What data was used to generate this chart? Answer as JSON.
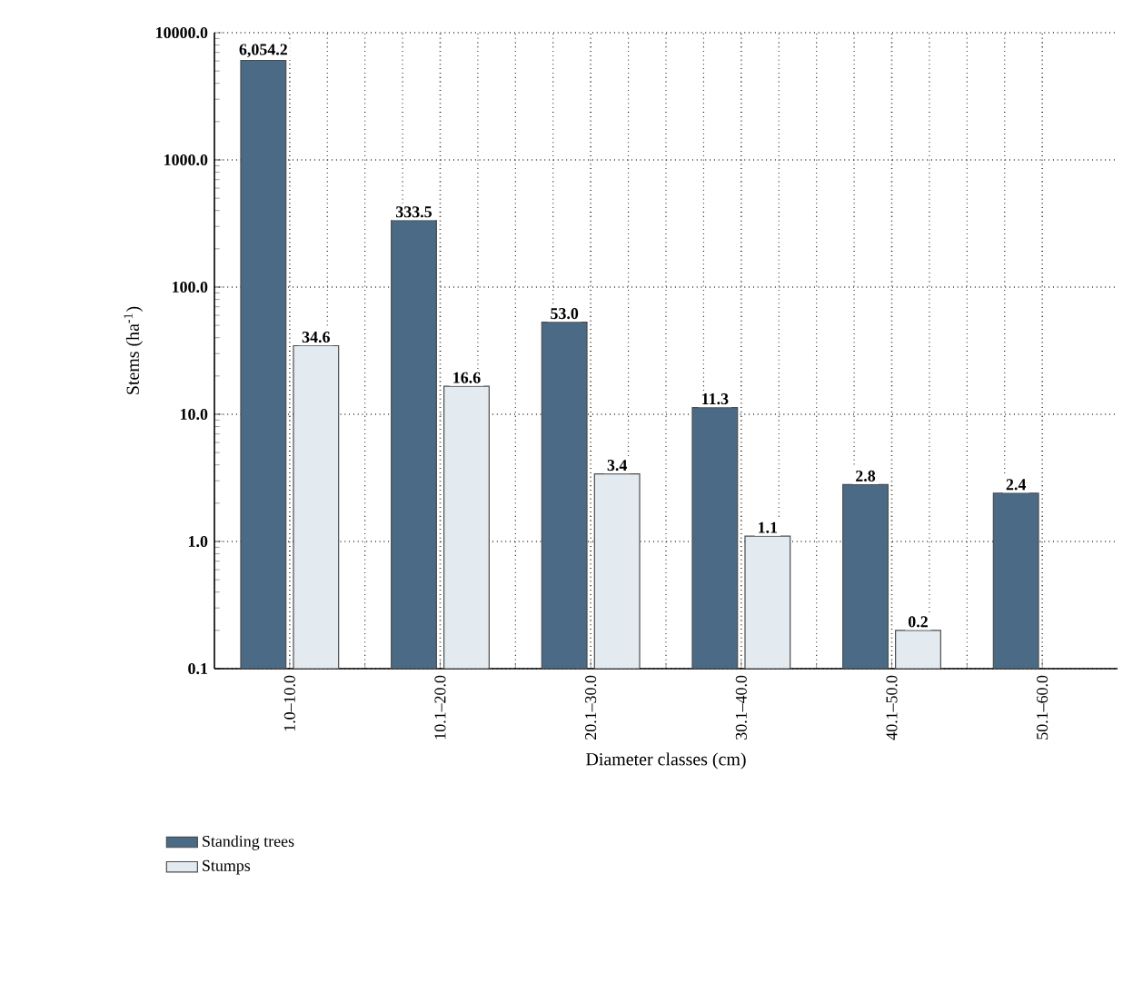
{
  "chart_data": {
    "type": "bar",
    "xlabel": "Diameter classes (cm)",
    "ylabel": "Stems (ha$^{-1}$)",
    "categories": [
      "1.0–10.0",
      "10.1–20.0",
      "20.1–30.0",
      "30.1–40.0",
      "40.1–50.0",
      "50.1–60.0"
    ],
    "series": [
      {
        "name": "Standing trees",
        "color": "#4a6a85",
        "values": [
          6054.2,
          333.5,
          53.0,
          11.3,
          2.8,
          2.4
        ],
        "value_labels": [
          "6,054.2",
          "333.5",
          "53.0",
          "11.3",
          "2.8",
          "2.4"
        ]
      },
      {
        "name": "Stumps",
        "color": "#e4ebf0",
        "values": [
          34.6,
          16.6,
          3.4,
          1.1,
          0.2,
          null
        ],
        "value_labels": [
          "34.6",
          "16.6",
          "3.4",
          "1.1",
          "0.2",
          null
        ]
      }
    ],
    "log": "y",
    "ylim": [
      0.1,
      10000
    ],
    "yticks": [
      {
        "value": 0.1,
        "label": "0.1"
      },
      {
        "value": 1,
        "label": "1.0"
      },
      {
        "value": 10,
        "label": "10.0"
      },
      {
        "value": 100,
        "label": "100.0"
      },
      {
        "value": 1000,
        "label": "1000.0"
      },
      {
        "value": 10000,
        "label": "10000.0"
      }
    ],
    "grid": true,
    "legend": "bottom left"
  }
}
